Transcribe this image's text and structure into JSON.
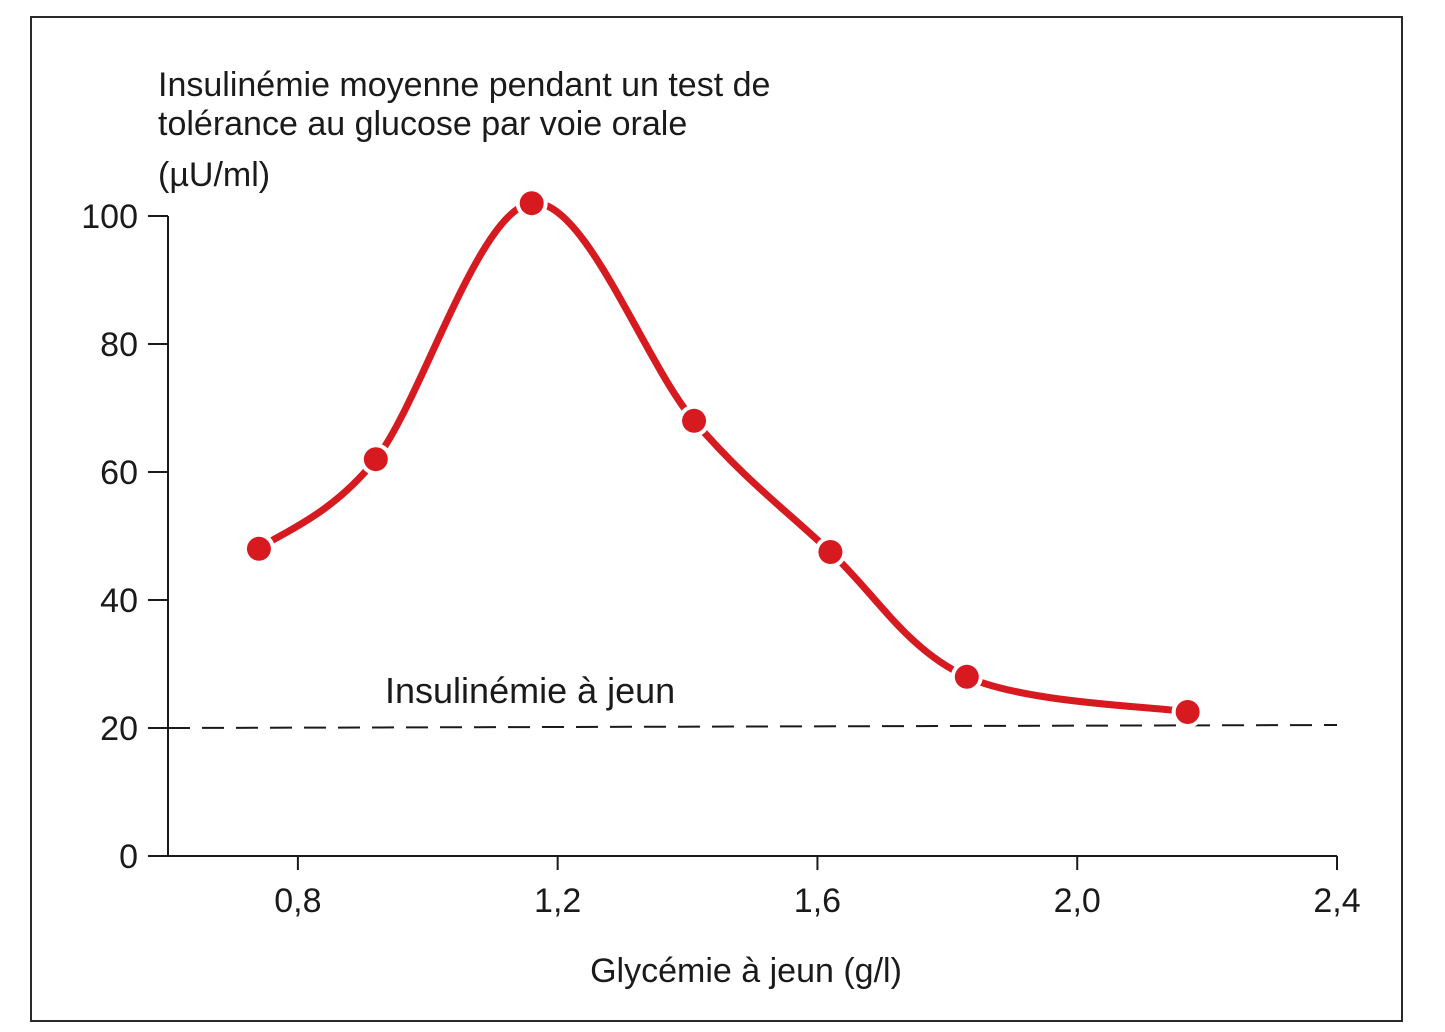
{
  "chart_data": {
    "type": "line",
    "ylabel": "Insulinémie moyenne pendant un test de tolérance au glucose par voie orale",
    "yunit": "(µU/ml)",
    "xlabel": "Glycémie à jeun (g/l)",
    "xlim": [
      0.6,
      2.4
    ],
    "ylim": [
      0,
      100
    ],
    "x_ticks": [
      0.8,
      1.2,
      1.6,
      2.0,
      2.4
    ],
    "x_tick_labels": [
      "0,8",
      "1,2",
      "1,6",
      "2,0",
      "2,4"
    ],
    "y_ticks": [
      0,
      20,
      40,
      60,
      80,
      100
    ],
    "y_tick_labels": [
      "0",
      "20",
      "40",
      "60",
      "80",
      "100"
    ],
    "series": [
      {
        "color": "#d71920",
        "x": [
          0.74,
          0.92,
          1.16,
          1.41,
          1.62,
          1.83,
          2.17
        ],
        "y": [
          48,
          62,
          102,
          68,
          47.5,
          28,
          22.5
        ]
      }
    ],
    "reference_line": {
      "y": 20,
      "label": "Insulinémie à jeun",
      "style": "dashed"
    },
    "grid": false
  }
}
